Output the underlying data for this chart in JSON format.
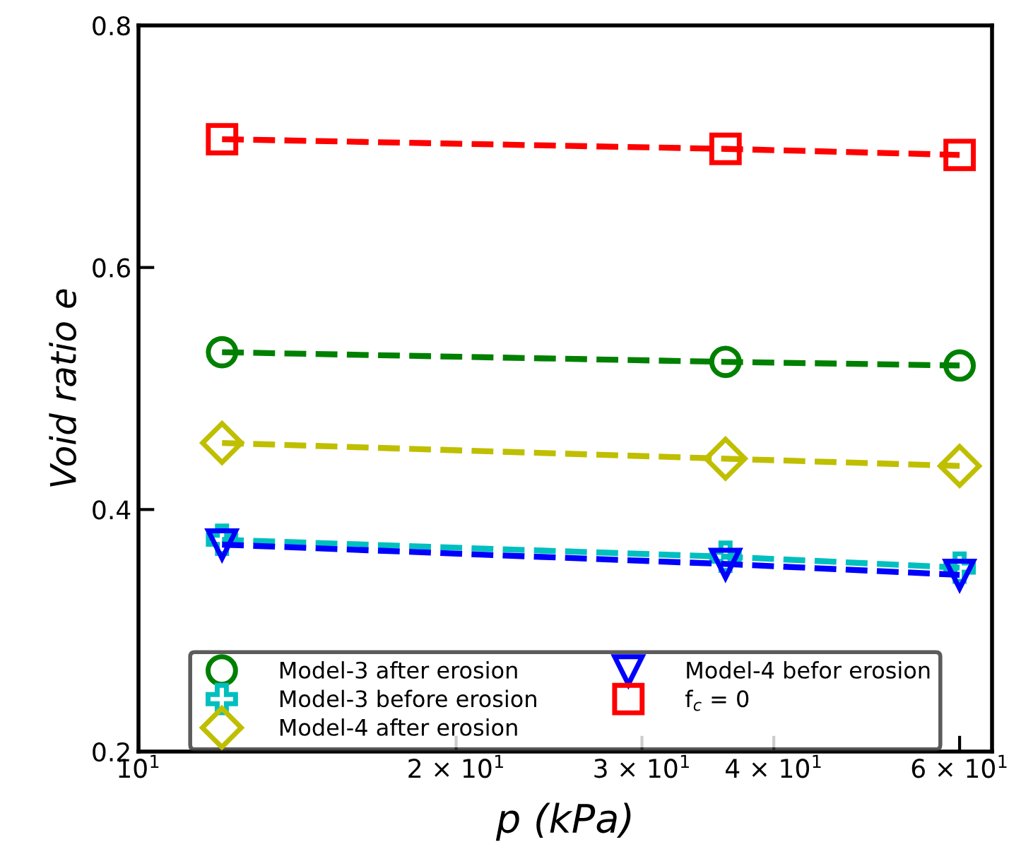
{
  "chart_data": {
    "type": "line",
    "xlabel": "p (kPa)",
    "ylabel": "Void ratio e",
    "log": "x",
    "x": [
      12,
      36,
      60
    ],
    "series": [
      {
        "name": "Model-3 after erosion",
        "color": "#008000",
        "marker": "circle",
        "values": [
          0.53,
          0.522,
          0.519
        ]
      },
      {
        "name": "Model-3 before erosion",
        "color": "#00bfbf",
        "marker": "cross",
        "values": [
          0.375,
          0.361,
          0.352
        ]
      },
      {
        "name": "Model-4 after erosion",
        "color": "#bfbf00",
        "marker": "diamond",
        "values": [
          0.455,
          0.442,
          0.436
        ]
      },
      {
        "name": "Model-4 befor erosion",
        "color": "#0000ff",
        "marker": "triangle",
        "values": [
          0.371,
          0.355,
          0.346
        ]
      },
      {
        "name": "f$_{c}$ = 0",
        "color": "#ff0000",
        "marker": "square",
        "values": [
          0.706,
          0.698,
          0.693
        ]
      }
    ],
    "line_style": "dashed",
    "legend": "bottom",
    "grid": false,
    "xlim": [
      10,
      64.4
    ],
    "xticks": [
      {
        "value": 10,
        "label": "10$^{1}$"
      },
      {
        "value": 20,
        "label": "2 × 10$^{1}$"
      },
      {
        "value": 30,
        "label": "3 × 10$^{1}$"
      },
      {
        "value": 40,
        "label": "4 × 10$^{1}$"
      },
      {
        "value": 60,
        "label": "6 × 10$^{1}$"
      }
    ],
    "ylim": [
      0.2,
      0.8
    ],
    "yticks": [
      0.2,
      0.4,
      0.6,
      0.8
    ]
  }
}
